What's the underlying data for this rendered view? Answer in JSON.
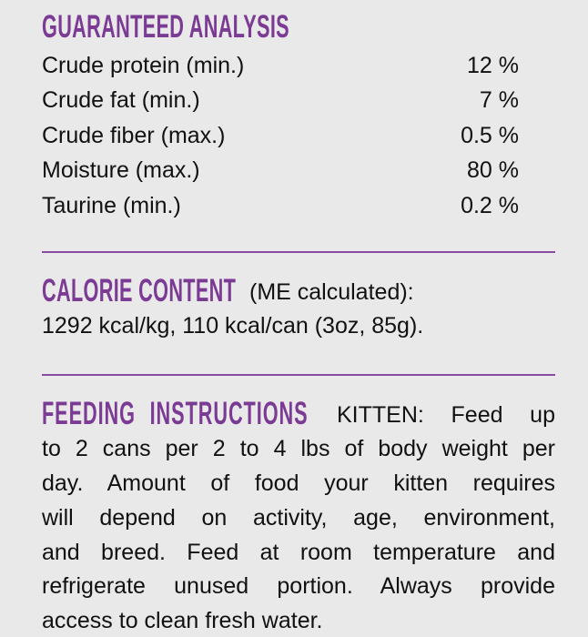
{
  "guaranteed_analysis": {
    "heading": "GUARANTEED ANALYSIS",
    "rows": [
      {
        "label": "Crude protein (min.)",
        "value": "12 %"
      },
      {
        "label": "Crude fat (min.)",
        "value": "7 %"
      },
      {
        "label": "Crude fiber (max.)",
        "value": "0.5 %"
      },
      {
        "label": "Moisture (max.)",
        "value": "80 %"
      },
      {
        "label": "Taurine (min.)",
        "value": "0.2 %"
      }
    ]
  },
  "calorie_content": {
    "heading": "CALORIE CONTENT",
    "qualifier": "(ME calculated):",
    "value": "1292 kcal/kg, 110 kcal/can (3oz, 85g)."
  },
  "feeding_instructions": {
    "heading": "FEEDING INSTRUCTIONS",
    "lines": [
      "KITTEN: Feed up",
      "to 2 cans per 2 to 4 lbs of body weight per",
      "day. Amount of food your kitten requires",
      "will depend on activity, age, environment,",
      "and breed. Feed at room temperature and",
      "refrigerate unused portion. Always provide",
      "access to clean fresh water."
    ]
  },
  "colors": {
    "accent": "#7b3a93",
    "background": "#e9e9e9",
    "text": "#111111"
  }
}
